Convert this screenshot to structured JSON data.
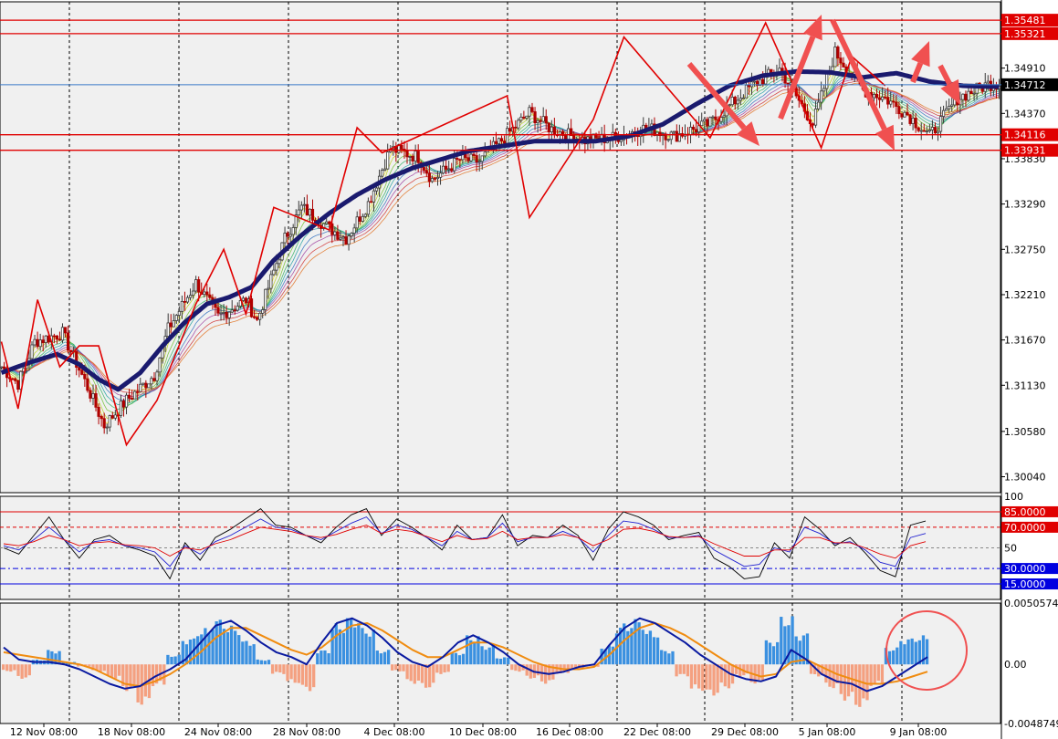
{
  "colors": {
    "background": "#ffffff",
    "pane": "#f0f0f0",
    "grid": "#000000",
    "axis_text": "#000000",
    "bull_candle": "#3a3a3a",
    "bear_candle": "#b00000",
    "ma_thick": "#1a1a6e",
    "zigzag": "#e00000",
    "level_line": "#e00000",
    "current_price_line": "#3a78c8",
    "arrow": "#f05050",
    "rsi_fast": "#000000",
    "rsi_mid": "#1f1fd0",
    "rsi_slow": "#e00000",
    "rsi_level_upper": "#e00000",
    "rsi_level_lower": "#0000e0",
    "hist_positive": "#3a90e0",
    "hist_negative": "#f4a080",
    "macd_line": "#0a1aa0",
    "signal_line": "#f08c10",
    "circle": "#f05050"
  },
  "chart_data": [
    {
      "type": "candlestick",
      "pane": "price",
      "y_ticks": [
        "1.34910",
        "1.34370",
        "1.33830",
        "1.33290",
        "1.32750",
        "1.32210",
        "1.31670",
        "1.31130",
        "1.30580",
        "1.30040"
      ],
      "ylim": [
        1.2985,
        1.357
      ],
      "x_tick_labels": [
        "12 Nov 08:00",
        "18 Nov 08:00",
        "24 Nov 08:00",
        "28 Nov 08:00",
        "4 Dec 08:00",
        "10 Dec 08:00",
        "16 Dec 08:00",
        "22 Dec 08:00",
        "29 Dec 08:00",
        "5 Jan 08:00",
        "9 Jan 08:00"
      ],
      "price_path": [
        [
          0,
          1.3135
        ],
        [
          6,
          1.3115
        ],
        [
          12,
          1.3165
        ],
        [
          22,
          1.3175
        ],
        [
          30,
          1.3118
        ],
        [
          37,
          1.3065
        ],
        [
          45,
          1.3095
        ],
        [
          55,
          1.3125
        ],
        [
          60,
          1.318
        ],
        [
          70,
          1.3235
        ],
        [
          78,
          1.3195
        ],
        [
          88,
          1.3215
        ],
        [
          92,
          1.319
        ],
        [
          102,
          1.3288
        ],
        [
          108,
          1.3325
        ],
        [
          118,
          1.33
        ],
        [
          124,
          1.3288
        ],
        [
          132,
          1.333
        ],
        [
          140,
          1.3395
        ],
        [
          150,
          1.3385
        ],
        [
          155,
          1.3358
        ],
        [
          165,
          1.3382
        ],
        [
          172,
          1.338
        ],
        [
          180,
          1.3405
        ],
        [
          190,
          1.3438
        ],
        [
          198,
          1.3418
        ],
        [
          210,
          1.3405
        ],
        [
          220,
          1.3408
        ],
        [
          232,
          1.342
        ],
        [
          242,
          1.341
        ],
        [
          255,
          1.3425
        ],
        [
          270,
          1.347
        ],
        [
          280,
          1.349
        ],
        [
          292,
          1.3425
        ],
        [
          300,
          1.351
        ],
        [
          310,
          1.3465
        ],
        [
          318,
          1.3455
        ],
        [
          326,
          1.3436
        ],
        [
          334,
          1.341
        ],
        [
          344,
          1.3455
        ],
        [
          355,
          1.3472
        ]
      ],
      "moving_average": [
        [
          0,
          1.3128
        ],
        [
          10,
          1.314
        ],
        [
          20,
          1.315
        ],
        [
          28,
          1.3138
        ],
        [
          35,
          1.312
        ],
        [
          42,
          1.3108
        ],
        [
          50,
          1.3128
        ],
        [
          58,
          1.316
        ],
        [
          66,
          1.3188
        ],
        [
          74,
          1.321
        ],
        [
          82,
          1.3218
        ],
        [
          90,
          1.323
        ],
        [
          98,
          1.3262
        ],
        [
          108,
          1.3292
        ],
        [
          118,
          1.3318
        ],
        [
          128,
          1.334
        ],
        [
          138,
          1.3358
        ],
        [
          148,
          1.3372
        ],
        [
          158,
          1.3382
        ],
        [
          168,
          1.3392
        ],
        [
          180,
          1.3398
        ],
        [
          192,
          1.3404
        ],
        [
          204,
          1.3404
        ],
        [
          214,
          1.3404
        ],
        [
          226,
          1.341
        ],
        [
          238,
          1.3424
        ],
        [
          250,
          1.3448
        ],
        [
          262,
          1.347
        ],
        [
          274,
          1.3482
        ],
        [
          286,
          1.3487
        ],
        [
          298,
          1.3486
        ],
        [
          310,
          1.348
        ],
        [
          322,
          1.3485
        ],
        [
          334,
          1.3475
        ],
        [
          346,
          1.347
        ],
        [
          355,
          1.3469
        ]
      ],
      "zigzag": [
        [
          0,
          1.3165
        ],
        [
          6,
          1.3085
        ],
        [
          13,
          1.3215
        ],
        [
          21,
          1.3135
        ],
        [
          28,
          1.316
        ],
        [
          35,
          1.316
        ],
        [
          45,
          1.3042
        ],
        [
          56,
          1.3095
        ],
        [
          70,
          1.321
        ],
        [
          80,
          1.3275
        ],
        [
          88,
          1.3198
        ],
        [
          98,
          1.3325
        ],
        [
          118,
          1.3298
        ],
        [
          128,
          1.342
        ],
        [
          137,
          1.339
        ],
        [
          182,
          1.3458
        ],
        [
          190,
          1.3313
        ],
        [
          213,
          1.343
        ],
        [
          224,
          1.3528
        ],
        [
          255,
          1.3408
        ],
        [
          275,
          1.3545
        ],
        [
          295,
          1.3396
        ],
        [
          306,
          1.3505
        ],
        [
          318,
          1.347
        ]
      ],
      "levels": [
        {
          "label": "1.35481",
          "value": 1.35481
        },
        {
          "label": "1.35321",
          "value": 1.35321
        },
        {
          "label": "1.34116",
          "value": 1.34116
        },
        {
          "label": "1.33931",
          "value": 1.33931
        }
      ],
      "current_price": {
        "label": "1.34712",
        "value": 1.34712
      },
      "visible_levels": [
        "1.35481",
        "1.35321",
        "1.34712",
        "1.34116",
        "1.33931"
      ]
    },
    {
      "type": "line",
      "pane": "rsi",
      "y_ticks": [
        "100",
        "50"
      ],
      "ylim": [
        0,
        100
      ],
      "levels": [
        {
          "label": "85.0000",
          "value": 85
        },
        {
          "label": "70.0000",
          "value": 70
        },
        {
          "label": "30.0000",
          "value": 30
        },
        {
          "label": "15.0000",
          "value": 15
        }
      ],
      "series": [
        {
          "values": [
            50,
            44,
            62,
            80,
            58,
            40,
            58,
            62,
            52,
            48,
            42,
            20,
            55,
            38,
            60,
            68,
            78,
            88,
            72,
            70,
            62,
            55,
            70,
            82,
            88,
            62,
            78,
            70,
            60,
            48,
            72,
            58,
            60,
            82,
            52,
            62,
            60,
            72,
            62,
            38,
            68,
            85,
            80,
            72,
            58,
            62,
            65,
            40,
            32,
            20,
            22,
            55,
            40,
            80,
            68,
            52,
            60,
            45,
            28,
            22,
            72,
            76
          ]
        },
        {
          "values": [
            52,
            48,
            58,
            70,
            58,
            46,
            56,
            58,
            52,
            50,
            46,
            32,
            52,
            44,
            56,
            62,
            70,
            78,
            70,
            68,
            62,
            58,
            66,
            74,
            80,
            64,
            72,
            68,
            60,
            52,
            66,
            58,
            60,
            74,
            56,
            60,
            60,
            66,
            60,
            46,
            62,
            76,
            74,
            68,
            60,
            60,
            62,
            48,
            40,
            32,
            34,
            50,
            46,
            70,
            64,
            54,
            56,
            48,
            36,
            32,
            60,
            64
          ]
        },
        {
          "values": [
            54,
            52,
            56,
            62,
            58,
            52,
            55,
            56,
            53,
            52,
            50,
            42,
            50,
            48,
            54,
            58,
            64,
            70,
            68,
            66,
            62,
            60,
            63,
            68,
            72,
            64,
            68,
            66,
            61,
            56,
            62,
            58,
            59,
            66,
            58,
            60,
            60,
            63,
            60,
            52,
            58,
            68,
            69,
            66,
            61,
            60,
            61,
            54,
            48,
            42,
            42,
            48,
            48,
            60,
            60,
            55,
            55,
            50,
            44,
            40,
            52,
            56
          ]
        }
      ]
    },
    {
      "type": "bar",
      "pane": "macd",
      "y_ticks": [
        "0.0050574",
        "0.00",
        "-0.0048749"
      ],
      "ylim": [
        -0.0048749,
        0.0050574
      ],
      "histogram": [
        -0.0006,
        -0.0012,
        0.0004,
        0.0012,
        0.0002,
        -0.0002,
        -0.0006,
        -0.0012,
        -0.0022,
        -0.0034,
        -0.0018,
        0.0008,
        0.0022,
        0.003,
        0.0038,
        0.0032,
        0.002,
        0.0004,
        -0.0008,
        -0.0016,
        -0.0022,
        0.0012,
        0.0034,
        0.004,
        0.003,
        0.0012,
        -0.0006,
        -0.0016,
        -0.002,
        -0.0008,
        0.001,
        0.0024,
        0.0016,
        0.0006,
        -0.0006,
        -0.0012,
        -0.0016,
        -0.0008,
        -0.0004,
        -0.0002,
        0.0016,
        0.0034,
        0.0038,
        0.0028,
        0.0012,
        -0.001,
        -0.0022,
        -0.0026,
        -0.002,
        -0.001,
        -0.0016,
        0.002,
        0.004,
        0.0026,
        -0.001,
        -0.002,
        -0.003,
        -0.0036,
        -0.0018,
        0.0014,
        0.0022,
        0.0024
      ],
      "macd": [
        0.0014,
        0.0004,
        0.0002,
        0.0002,
        0.0,
        -0.0004,
        -0.001,
        -0.0016,
        -0.002,
        -0.0018,
        -0.001,
        -0.0004,
        0.0004,
        0.0018,
        0.0032,
        0.0036,
        0.0028,
        0.0018,
        0.001,
        0.0006,
        0.0,
        0.0018,
        0.0034,
        0.0038,
        0.0032,
        0.0022,
        0.001,
        0.0002,
        -0.0002,
        0.0006,
        0.0018,
        0.0024,
        0.0018,
        0.001,
        0.0,
        -0.0006,
        -0.0008,
        -0.0006,
        -0.0002,
        0.0,
        0.0016,
        0.003,
        0.0038,
        0.0034,
        0.0026,
        0.0018,
        0.0008,
        0.0,
        -0.0008,
        -0.0012,
        -0.0014,
        -0.001,
        0.0012,
        0.0004,
        -0.0008,
        -0.0014,
        -0.0016,
        -0.0022,
        -0.0018,
        -0.001,
        -0.0002,
        0.0006
      ],
      "signal": [
        0.001,
        0.0008,
        0.0006,
        0.0004,
        0.0002,
        0.0,
        -0.0004,
        -0.001,
        -0.0016,
        -0.0018,
        -0.0014,
        -0.0008,
        0.0,
        0.001,
        0.0022,
        0.003,
        0.003,
        0.0024,
        0.0018,
        0.0012,
        0.0008,
        0.0014,
        0.0024,
        0.0032,
        0.0034,
        0.0028,
        0.002,
        0.0012,
        0.0006,
        0.0006,
        0.0012,
        0.0018,
        0.0018,
        0.0014,
        0.0008,
        0.0002,
        -0.0002,
        -0.0004,
        -0.0004,
        -0.0002,
        0.0008,
        0.002,
        0.003,
        0.0034,
        0.003,
        0.0024,
        0.0016,
        0.0008,
        0.0,
        -0.0006,
        -0.001,
        -0.0008,
        0.0002,
        0.0004,
        -0.0002,
        -0.0008,
        -0.0012,
        -0.0016,
        -0.0016,
        -0.0014,
        -0.001,
        -0.0006
      ]
    }
  ]
}
